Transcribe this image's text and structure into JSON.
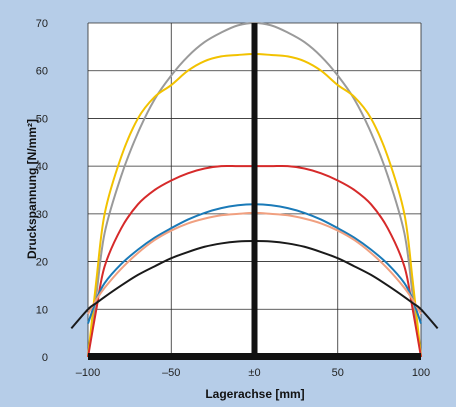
{
  "colors": {
    "panel": "#b6cde8",
    "plot_bg": "#ffffff",
    "grid": "#2a2a2a",
    "axis_bar": "#111111"
  },
  "chart_data": {
    "type": "line",
    "title": "",
    "xlabel": "Lagerachse [mm]",
    "ylabel": "Druckspannung [N/mm²]",
    "xlim": [
      -100,
      100
    ],
    "ylim": [
      0,
      70
    ],
    "xticks": [
      -100,
      -50,
      0,
      50,
      100
    ],
    "xtick_labels": [
      "–100",
      "–50",
      "±0",
      "50",
      "100"
    ],
    "yticks": [
      0,
      10,
      20,
      30,
      40,
      50,
      60,
      70
    ],
    "ytick_labels": [
      "0",
      "10",
      "20",
      "30",
      "40",
      "50",
      "60",
      "70"
    ],
    "grid": true,
    "legend": "none",
    "x": [
      -110,
      -100,
      -95,
      -90,
      -80,
      -70,
      -60,
      -50,
      -40,
      -30,
      -20,
      -10,
      0,
      10,
      20,
      30,
      40,
      50,
      60,
      70,
      80,
      90,
      95,
      100,
      110
    ],
    "series": [
      {
        "color": "#9a9a9a",
        "values": [
          null,
          0,
          13,
          26,
          38,
          47,
          54,
          59,
          63,
          66,
          68,
          69.5,
          70,
          69.5,
          68,
          66,
          63,
          59,
          54,
          47,
          38,
          26,
          13,
          0,
          null
        ]
      },
      {
        "color": "#f2c200",
        "values": [
          null,
          0,
          16,
          30,
          42,
          50,
          54.5,
          57,
          60,
          62,
          63,
          63.3,
          63.5,
          63.3,
          63,
          62,
          60,
          57,
          54.5,
          50,
          42,
          30,
          16,
          0,
          null
        ]
      },
      {
        "color": "#d62a2a",
        "values": [
          null,
          0,
          10,
          19,
          27,
          32,
          35,
          37,
          38.5,
          39.5,
          40,
          40,
          40,
          40,
          40,
          39.5,
          38.5,
          37,
          35,
          32,
          27,
          19,
          10,
          0,
          null
        ]
      },
      {
        "color": "#1a7ab8",
        "values": [
          null,
          7,
          12,
          15.5,
          19.5,
          22.5,
          25,
          27,
          28.8,
          30.2,
          31.2,
          31.8,
          32,
          31.8,
          31.2,
          30.2,
          28.8,
          27,
          25,
          22.5,
          19.5,
          15.5,
          12,
          7,
          null
        ]
      },
      {
        "color": "#f0a080",
        "values": [
          null,
          9,
          12,
          14.5,
          18.5,
          21.8,
          24.5,
          26.5,
          28,
          29,
          29.7,
          30,
          30.2,
          30,
          29.7,
          29,
          28,
          26.5,
          24.5,
          21.8,
          18.5,
          14.5,
          12,
          9,
          null
        ]
      },
      {
        "color": "#1a1a1a",
        "values": [
          6,
          10,
          11.3,
          12.6,
          15,
          17.2,
          19,
          20.7,
          22,
          23.1,
          23.8,
          24.2,
          24.3,
          24.2,
          23.8,
          23.1,
          22,
          20.7,
          19,
          17.2,
          15,
          12.6,
          11.3,
          10,
          6
        ]
      }
    ]
  }
}
